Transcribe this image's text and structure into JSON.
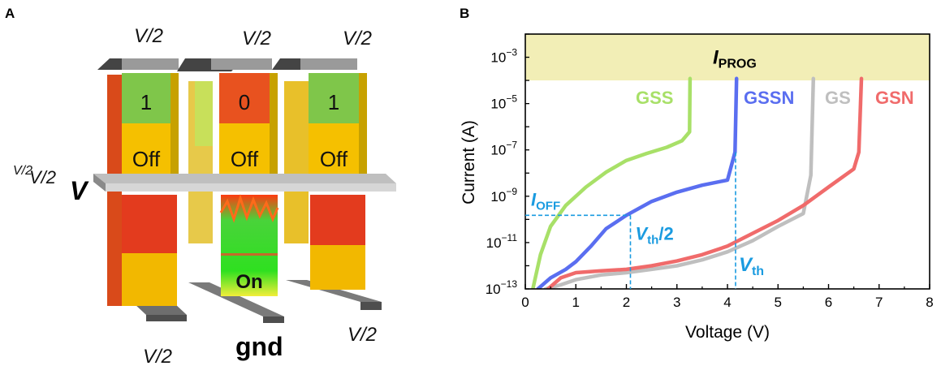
{
  "panel_a": {
    "label": "A",
    "bias": {
      "top_left": "V/2",
      "top_mid": "V/2",
      "top_right": "V/2",
      "side_small": "V/2",
      "side": "V/2",
      "word_line": "V",
      "bottom_left": "V/2",
      "bottom_mid": "gnd",
      "bottom_right": "V/2"
    },
    "states": [
      "1",
      "0",
      "1"
    ],
    "off_label": "Off",
    "on_label": "On",
    "colors": {
      "green": "#7fc64a",
      "orange_red": "#e8521f",
      "yellow": "#f5c000",
      "red": "#e33b1e",
      "grey": "#8c8c8c"
    }
  },
  "chart_data": {
    "type": "line",
    "panel_label": "B",
    "xlabel": "Voltage (V)",
    "ylabel": "Current (A)",
    "xlim": [
      0,
      8
    ],
    "ylim": [
      1e-13,
      0.01
    ],
    "yscale": "log",
    "x_ticks": [
      "0",
      "1",
      "2",
      "3",
      "4",
      "5",
      "6",
      "7",
      "8"
    ],
    "y_ticks": [
      {
        "base": "10",
        "exp": "−13",
        "value": 1e-13
      },
      {
        "base": "10",
        "exp": "−11",
        "value": 1e-11
      },
      {
        "base": "10",
        "exp": "−9",
        "value": 1e-09
      },
      {
        "base": "10",
        "exp": "−7",
        "value": 1e-07
      },
      {
        "base": "10",
        "exp": "−5",
        "value": 1e-05
      },
      {
        "base": "10",
        "exp": "−3",
        "value": 0.001
      }
    ],
    "band": {
      "label_main": "I",
      "label_sub": "PROG",
      "from": 0.0001,
      "to": 0.01,
      "color": "#f2eeb6"
    },
    "series": [
      {
        "name": "GSS",
        "color": "#a8e068",
        "x": [
          0.15,
          0.3,
          0.5,
          0.8,
          1.2,
          1.6,
          2.0,
          2.4,
          2.8,
          3.1,
          3.25,
          3.26
        ],
        "y": [
          1e-13,
          3e-12,
          5e-11,
          4e-10,
          2.5e-09,
          1.1e-08,
          3.5e-08,
          7e-08,
          1.3e-07,
          2.5e-07,
          6e-07,
          0.00012
        ]
      },
      {
        "name": "GSSN",
        "color": "#5a6ef0",
        "x": [
          0.25,
          0.5,
          0.8,
          1.0,
          1.3,
          1.6,
          2.0,
          2.5,
          3.0,
          3.5,
          4.0,
          4.15,
          4.18
        ],
        "y": [
          1e-13,
          3e-13,
          7e-13,
          1.5e-12,
          7e-12,
          4e-11,
          1.5e-10,
          6e-10,
          1.5e-09,
          3e-09,
          5e-09,
          8e-08,
          0.00012
        ]
      },
      {
        "name": "GS",
        "color": "#bfbfbf",
        "x": [
          0.4,
          0.7,
          1.0,
          1.5,
          2.0,
          2.5,
          3.0,
          3.5,
          4.0,
          4.5,
          5.0,
          5.5,
          5.65,
          5.7
        ],
        "y": [
          1e-13,
          1.5e-13,
          2.5e-13,
          4e-13,
          5e-13,
          7e-13,
          1e-12,
          1.8e-12,
          4e-12,
          1.2e-11,
          5e-11,
          1.8e-10,
          8e-09,
          0.00012
        ]
      },
      {
        "name": "GSN",
        "color": "#f06b6b",
        "x": [
          0.45,
          0.7,
          1.0,
          1.5,
          2.0,
          2.5,
          3.0,
          3.5,
          4.0,
          4.5,
          5.0,
          5.5,
          6.0,
          6.5,
          6.6,
          6.65
        ],
        "y": [
          1e-13,
          3e-13,
          5e-13,
          6e-13,
          7e-13,
          1e-12,
          1.6e-12,
          3e-12,
          7e-12,
          2.5e-11,
          9e-11,
          4e-10,
          2.5e-09,
          1.5e-08,
          8e-08,
          0.00012
        ]
      }
    ],
    "annotations": {
      "ioff": {
        "main": "I",
        "sub": "OFF",
        "value": 1.5e-10
      },
      "vth_half": {
        "main": "V",
        "sub": "th",
        "suffix": "/2",
        "value": 2.08
      },
      "vth": {
        "main": "V",
        "sub": "th",
        "value": 4.16
      },
      "color": "#1a9be0"
    }
  }
}
